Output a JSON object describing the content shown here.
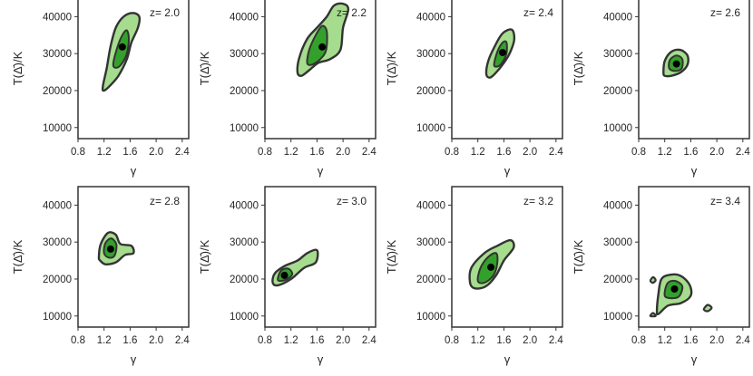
{
  "figure": {
    "xlabel": "γ",
    "ylabel": "T(Δ̄)/K",
    "colors": {
      "outer_fill": "#a6dc8e",
      "inner_fill": "#33a02c",
      "contour_line": "#333333",
      "point": "#000000",
      "axis": "#333333"
    }
  },
  "chart_data": [
    {
      "type": "contour",
      "label": "z= 2.0",
      "xlabel": "γ",
      "ylabel": "T(Δ̄)/K",
      "xlim": [
        0.8,
        2.5
      ],
      "ylim": [
        7000,
        45000
      ],
      "xticks": [
        "0.8",
        "1.2",
        "1.6",
        "2.0",
        "2.4"
      ],
      "yticks": [
        "10000",
        "20000",
        "30000",
        "40000"
      ],
      "best_fit": {
        "x": 1.48,
        "y": 31800
      },
      "outer": [
        [
          1.18,
          21000
        ],
        [
          1.24,
          26000
        ],
        [
          1.3,
          32000
        ],
        [
          1.38,
          37000
        ],
        [
          1.5,
          40000
        ],
        [
          1.64,
          41000
        ],
        [
          1.74,
          40000
        ],
        [
          1.72,
          37000
        ],
        [
          1.62,
          33000
        ],
        [
          1.55,
          28500
        ],
        [
          1.42,
          24000
        ],
        [
          1.3,
          21500
        ],
        [
          1.2,
          20000
        ]
      ],
      "inner": [
        [
          1.34,
          27000
        ],
        [
          1.4,
          31500
        ],
        [
          1.48,
          35000
        ],
        [
          1.55,
          36300
        ],
        [
          1.58,
          34000
        ],
        [
          1.55,
          30000
        ],
        [
          1.48,
          27500
        ],
        [
          1.4,
          26200
        ]
      ]
    },
    {
      "type": "contour",
      "label": "z= 2.2",
      "xlabel": "γ",
      "ylabel": "T(Δ̄)/K",
      "xlim": [
        0.8,
        2.5
      ],
      "ylim": [
        7000,
        45000
      ],
      "xticks": [
        "0.8",
        "1.2",
        "1.6",
        "2.0",
        "2.4"
      ],
      "yticks": [
        "10000",
        "20000",
        "30000",
        "40000"
      ],
      "best_fit": {
        "x": 1.68,
        "y": 31800
      },
      "outer": [
        [
          1.3,
          25000
        ],
        [
          1.33,
          29000
        ],
        [
          1.45,
          34000
        ],
        [
          1.6,
          37000
        ],
        [
          1.75,
          40000
        ],
        [
          1.86,
          43000
        ],
        [
          2.0,
          43500
        ],
        [
          2.08,
          42000
        ],
        [
          2.0,
          37000
        ],
        [
          1.96,
          31000
        ],
        [
          1.8,
          28500
        ],
        [
          1.62,
          27500
        ],
        [
          1.48,
          25500
        ],
        [
          1.36,
          24000
        ]
      ],
      "inner": [
        [
          1.45,
          27500
        ],
        [
          1.48,
          31000
        ],
        [
          1.58,
          35000
        ],
        [
          1.68,
          37500
        ],
        [
          1.75,
          36000
        ],
        [
          1.74,
          31000
        ],
        [
          1.65,
          28500
        ],
        [
          1.52,
          27000
        ]
      ]
    },
    {
      "type": "contour",
      "label": "z= 2.4",
      "xlabel": "γ",
      "ylabel": "T(Δ̄)/K",
      "xlim": [
        0.8,
        2.5
      ],
      "ylim": [
        7000,
        45000
      ],
      "xticks": [
        "0.8",
        "1.2",
        "1.6",
        "2.0",
        "2.4"
      ],
      "yticks": [
        "10000",
        "20000",
        "30000",
        "40000"
      ],
      "best_fit": {
        "x": 1.58,
        "y": 30300
      },
      "outer": [
        [
          1.33,
          24500
        ],
        [
          1.36,
          28000
        ],
        [
          1.46,
          32000
        ],
        [
          1.58,
          35500
        ],
        [
          1.72,
          36500
        ],
        [
          1.76,
          34000
        ],
        [
          1.7,
          30500
        ],
        [
          1.6,
          27500
        ],
        [
          1.46,
          24500
        ],
        [
          1.38,
          23500
        ]
      ],
      "inner": [
        [
          1.45,
          27000
        ],
        [
          1.5,
          30500
        ],
        [
          1.58,
          33000
        ],
        [
          1.64,
          33000
        ],
        [
          1.64,
          30000
        ],
        [
          1.57,
          27500
        ],
        [
          1.5,
          26500
        ]
      ]
    },
    {
      "type": "contour",
      "label": "z= 2.6",
      "xlabel": "γ",
      "ylabel": "T(Δ̄)/K",
      "xlim": [
        0.8,
        2.5
      ],
      "ylim": [
        7000,
        45000
      ],
      "xticks": [
        "0.8",
        "1.2",
        "1.6",
        "2.0",
        "2.4"
      ],
      "yticks": [
        "10000",
        "20000",
        "30000",
        "40000"
      ],
      "best_fit": {
        "x": 1.38,
        "y": 27200
      },
      "outer": [
        [
          1.18,
          25000
        ],
        [
          1.2,
          28000
        ],
        [
          1.3,
          30500
        ],
        [
          1.44,
          31000
        ],
        [
          1.55,
          29500
        ],
        [
          1.55,
          27000
        ],
        [
          1.45,
          25000
        ],
        [
          1.3,
          24000
        ],
        [
          1.2,
          24000
        ]
      ],
      "inner": [
        [
          1.27,
          26000
        ],
        [
          1.28,
          28300
        ],
        [
          1.38,
          29500
        ],
        [
          1.47,
          28500
        ],
        [
          1.46,
          26000
        ],
        [
          1.36,
          25300
        ]
      ]
    },
    {
      "type": "contour",
      "label": "z= 2.8",
      "xlabel": "γ",
      "ylabel": "T(Δ̄)/K",
      "xlim": [
        0.8,
        2.5
      ],
      "ylim": [
        7000,
        45000
      ],
      "xticks": [
        "0.8",
        "1.2",
        "1.6",
        "2.0",
        "2.4"
      ],
      "yticks": [
        "10000",
        "20000",
        "30000",
        "40000"
      ],
      "best_fit": {
        "x": 1.3,
        "y": 28100
      },
      "outer": [
        [
          1.12,
          26000
        ],
        [
          1.15,
          29500
        ],
        [
          1.26,
          32500
        ],
        [
          1.38,
          32000
        ],
        [
          1.45,
          29500
        ],
        [
          1.62,
          29000
        ],
        [
          1.65,
          27000
        ],
        [
          1.52,
          26500
        ],
        [
          1.38,
          24500
        ],
        [
          1.22,
          24000
        ],
        [
          1.14,
          25000
        ]
      ],
      "inner": [
        [
          1.2,
          27000
        ],
        [
          1.22,
          29700
        ],
        [
          1.31,
          31000
        ],
        [
          1.39,
          29300
        ],
        [
          1.36,
          26300
        ],
        [
          1.27,
          25800
        ]
      ]
    },
    {
      "type": "contour",
      "label": "z= 3.0",
      "xlabel": "γ",
      "ylabel": "T(Δ̄)/K",
      "xlim": [
        0.8,
        2.5
      ],
      "ylim": [
        7000,
        45000
      ],
      "xticks": [
        "0.8",
        "1.2",
        "1.6",
        "2.0",
        "2.4"
      ],
      "yticks": [
        "10000",
        "20000",
        "30000",
        "40000"
      ],
      "best_fit": {
        "x": 1.1,
        "y": 21000
      },
      "outer": [
        [
          0.92,
          19000
        ],
        [
          0.95,
          21500
        ],
        [
          1.1,
          23500
        ],
        [
          1.3,
          25000
        ],
        [
          1.45,
          27000
        ],
        [
          1.6,
          27800
        ],
        [
          1.58,
          24500
        ],
        [
          1.4,
          23000
        ],
        [
          1.2,
          20000
        ],
        [
          1.0,
          18300
        ]
      ],
      "inner": [
        [
          1.0,
          19700
        ],
        [
          1.05,
          22300
        ],
        [
          1.16,
          22800
        ],
        [
          1.22,
          21300
        ],
        [
          1.12,
          19800
        ]
      ]
    },
    {
      "type": "contour",
      "label": "z= 3.2",
      "xlabel": "γ",
      "ylabel": "T(Δ̄)/K",
      "xlim": [
        0.8,
        2.5
      ],
      "ylim": [
        7000,
        45000
      ],
      "xticks": [
        "0.8",
        "1.2",
        "1.6",
        "2.0",
        "2.4"
      ],
      "yticks": [
        "10000",
        "20000",
        "30000",
        "40000"
      ],
      "best_fit": {
        "x": 1.4,
        "y": 23200
      },
      "outer": [
        [
          1.08,
          19000
        ],
        [
          1.1,
          23000
        ],
        [
          1.3,
          27000
        ],
        [
          1.5,
          29000
        ],
        [
          1.7,
          30500
        ],
        [
          1.75,
          28500
        ],
        [
          1.6,
          25000
        ],
        [
          1.48,
          21000
        ],
        [
          1.32,
          18000
        ],
        [
          1.15,
          17500
        ]
      ],
      "inner": [
        [
          1.2,
          19500
        ],
        [
          1.24,
          23000
        ],
        [
          1.36,
          26000
        ],
        [
          1.48,
          27000
        ],
        [
          1.5,
          24500
        ],
        [
          1.44,
          21000
        ],
        [
          1.3,
          19000
        ]
      ]
    },
    {
      "type": "contour",
      "label": "z= 3.4",
      "xlabel": "γ",
      "ylabel": "T(Δ̄)/K",
      "xlim": [
        0.8,
        2.5
      ],
      "ylim": [
        7000,
        45000
      ],
      "xticks": [
        "0.8",
        "1.2",
        "1.6",
        "2.0",
        "2.4"
      ],
      "yticks": [
        "10000",
        "20000",
        "30000",
        "40000"
      ],
      "best_fit": {
        "x": 1.35,
        "y": 17300
      },
      "outer": [
        [
          1.08,
          11500
        ],
        [
          1.1,
          15500
        ],
        [
          1.15,
          20000
        ],
        [
          1.3,
          21200
        ],
        [
          1.45,
          20800
        ],
        [
          1.58,
          18500
        ],
        [
          1.6,
          15500
        ],
        [
          1.45,
          13500
        ],
        [
          1.25,
          12800
        ],
        [
          1.1,
          10500
        ]
      ],
      "outer_islands": [
        [
          [
            1.8,
            11800
          ],
          [
            1.86,
            13000
          ],
          [
            1.92,
            12200
          ],
          [
            1.86,
            11300
          ]
        ],
        [
          [
            0.98,
            19500
          ],
          [
            1.02,
            20500
          ],
          [
            1.06,
            19700
          ],
          [
            1.02,
            19000
          ]
        ],
        [
          [
            0.98,
            10000
          ],
          [
            1.02,
            10800
          ],
          [
            1.06,
            10000
          ]
        ]
      ],
      "inner": [
        [
          1.2,
          15500
        ],
        [
          1.24,
          18800
        ],
        [
          1.36,
          19500
        ],
        [
          1.47,
          18000
        ],
        [
          1.42,
          15300
        ],
        [
          1.3,
          14800
        ]
      ]
    }
  ]
}
